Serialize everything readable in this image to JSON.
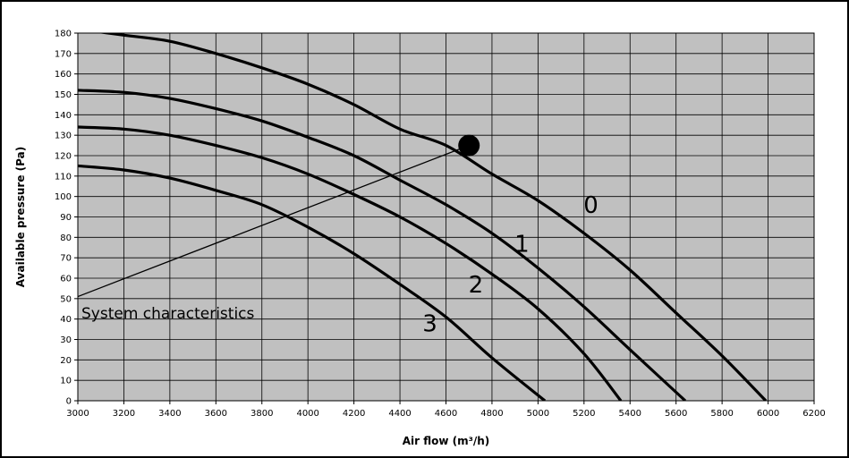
{
  "chart_data": {
    "type": "line",
    "xlabel": "Air flow (m³/h)",
    "ylabel": "Available pressure (Pa)",
    "xlim": [
      3000,
      6200
    ],
    "ylim": [
      0,
      180
    ],
    "x_ticks": [
      3000,
      3200,
      3400,
      3600,
      3800,
      4000,
      4200,
      4400,
      4600,
      4800,
      5000,
      5200,
      5400,
      5600,
      5800,
      6000,
      6200
    ],
    "y_ticks": [
      0,
      10,
      20,
      30,
      40,
      50,
      60,
      70,
      80,
      90,
      100,
      110,
      120,
      130,
      140,
      150,
      160,
      170,
      180
    ],
    "grid": true,
    "background": "#c0c0c0",
    "series": [
      {
        "name": "0",
        "x": [
          3000,
          3200,
          3400,
          3600,
          3800,
          4000,
          4200,
          4400,
          4600,
          4800,
          5000,
          5200,
          5400,
          5600,
          5800,
          5990
        ],
        "y": [
          182,
          179,
          176,
          170,
          163,
          155,
          145,
          133,
          125,
          111,
          98,
          82,
          64,
          43,
          22,
          0
        ],
        "label_pos": {
          "x": 5230,
          "y": 92
        }
      },
      {
        "name": "1",
        "x": [
          3000,
          3200,
          3400,
          3600,
          3800,
          4000,
          4200,
          4400,
          4600,
          4800,
          5000,
          5200,
          5400,
          5640
        ],
        "y": [
          152,
          151,
          148,
          143,
          137,
          129,
          120,
          108,
          96,
          82,
          65,
          46,
          25,
          0
        ],
        "label_pos": {
          "x": 4930,
          "y": 73
        }
      },
      {
        "name": "2",
        "x": [
          3000,
          3200,
          3400,
          3600,
          3800,
          4000,
          4200,
          4400,
          4600,
          4800,
          5000,
          5200,
          5360
        ],
        "y": [
          134,
          133,
          130,
          125,
          119,
          111,
          101,
          90,
          77,
          62,
          45,
          23,
          0
        ],
        "label_pos": {
          "x": 4730,
          "y": 53
        }
      },
      {
        "name": "3",
        "x": [
          3000,
          3200,
          3400,
          3600,
          3800,
          4000,
          4200,
          4400,
          4600,
          4800,
          5030
        ],
        "y": [
          115,
          113,
          109,
          103,
          96,
          85,
          72,
          57,
          41,
          21,
          0
        ],
        "label_pos": {
          "x": 4530,
          "y": 34
        }
      }
    ],
    "system_characteristic": {
      "x": [
        3000,
        4700
      ],
      "y": [
        51,
        125
      ]
    },
    "operating_point": {
      "x": 4700,
      "y": 125
    },
    "annotation": "System characteristics"
  }
}
